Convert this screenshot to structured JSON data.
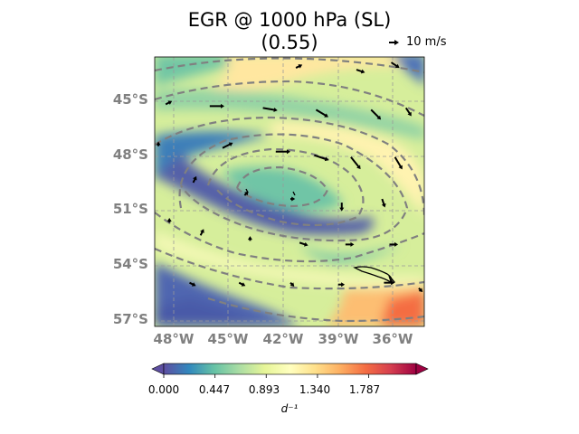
{
  "title": {
    "line1": "EGR @ 1000 hPa (SL)",
    "line2": "(0.55)"
  },
  "reference_vector": {
    "label": "10 m/s"
  },
  "map": {
    "lat_labels": [
      "45°S",
      "48°S",
      "51°S",
      "54°S",
      "57°S"
    ],
    "lon_labels": [
      "48°W",
      "45°W",
      "42°W",
      "39°W",
      "36°W"
    ],
    "lat_range": [
      -57.2,
      -42.4
    ],
    "lon_range": [
      -49.0,
      -34.3
    ],
    "gridlines": true,
    "contour_color": "#808080",
    "contour_style": "dashed"
  },
  "colorbar": {
    "ticks": [
      "0.000",
      "0.447",
      "0.893",
      "1.340",
      "1.787"
    ],
    "range": [
      0.0,
      2.2
    ],
    "label": "d⁻¹",
    "colormap": "Spectral_r",
    "extend": "both"
  },
  "wind_vectors": [
    {
      "lat": -45.0,
      "lon": -48.4,
      "u": 2,
      "v": 1
    },
    {
      "lat": -45.1,
      "lon": -46.0,
      "u": 6,
      "v": 0
    },
    {
      "lat": -45.2,
      "lon": -43.1,
      "u": 6,
      "v": -1
    },
    {
      "lat": -45.3,
      "lon": -40.2,
      "u": 5,
      "v": -3
    },
    {
      "lat": -45.3,
      "lon": -37.2,
      "u": 4,
      "v": -4
    },
    {
      "lat": -45.2,
      "lon": -35.3,
      "u": 2,
      "v": -3
    },
    {
      "lat": -43.0,
      "lon": -41.3,
      "u": 2,
      "v": 1
    },
    {
      "lat": -43.1,
      "lon": -38.0,
      "u": 3,
      "v": -1
    },
    {
      "lat": -42.7,
      "lon": -36.1,
      "u": 3,
      "v": -2
    },
    {
      "lat": -47.4,
      "lon": -45.3,
      "u": 4,
      "v": 2
    },
    {
      "lat": -47.6,
      "lon": -42.4,
      "u": 6,
      "v": 0
    },
    {
      "lat": -47.8,
      "lon": -40.3,
      "u": 6,
      "v": -2
    },
    {
      "lat": -47.9,
      "lon": -38.3,
      "u": 4,
      "v": -5
    },
    {
      "lat": -47.9,
      "lon": -35.9,
      "u": 3,
      "v": -5
    },
    {
      "lat": -47.3,
      "lon": -48.8,
      "u": 0,
      "v": 1
    },
    {
      "lat": -49.3,
      "lon": -46.9,
      "u": 1,
      "v": 2
    },
    {
      "lat": -50.0,
      "lon": -44.1,
      "u": 1,
      "v": 1
    },
    {
      "lat": -50.2,
      "lon": -41.6,
      "u": 1,
      "v": 0
    },
    {
      "lat": -50.4,
      "lon": -38.8,
      "u": 0,
      "v": -3
    },
    {
      "lat": -50.2,
      "lon": -36.6,
      "u": 1,
      "v": -3
    },
    {
      "lat": -51.5,
      "lon": -48.2,
      "u": 0,
      "v": 1
    },
    {
      "lat": -52.2,
      "lon": -46.5,
      "u": 1,
      "v": 2
    },
    {
      "lat": -52.5,
      "lon": -43.8,
      "u": 0,
      "v": 1
    },
    {
      "lat": -52.6,
      "lon": -41.1,
      "u": 3,
      "v": -1
    },
    {
      "lat": -52.7,
      "lon": -38.6,
      "u": 3,
      "v": 0
    },
    {
      "lat": -52.7,
      "lon": -36.2,
      "u": 3,
      "v": 0
    },
    {
      "lat": -54.8,
      "lon": -47.1,
      "u": 2,
      "v": -1
    },
    {
      "lat": -54.8,
      "lon": -44.4,
      "u": 2,
      "v": -1
    },
    {
      "lat": -54.8,
      "lon": -41.6,
      "u": 1,
      "v": -1
    },
    {
      "lat": -54.9,
      "lon": -39.0,
      "u": 2,
      "v": 0
    },
    {
      "lat": -54.8,
      "lon": -36.5,
      "u": 4,
      "v": 0
    },
    {
      "lat": -55.1,
      "lon": -34.6,
      "u": 1,
      "v": -1
    }
  ]
}
